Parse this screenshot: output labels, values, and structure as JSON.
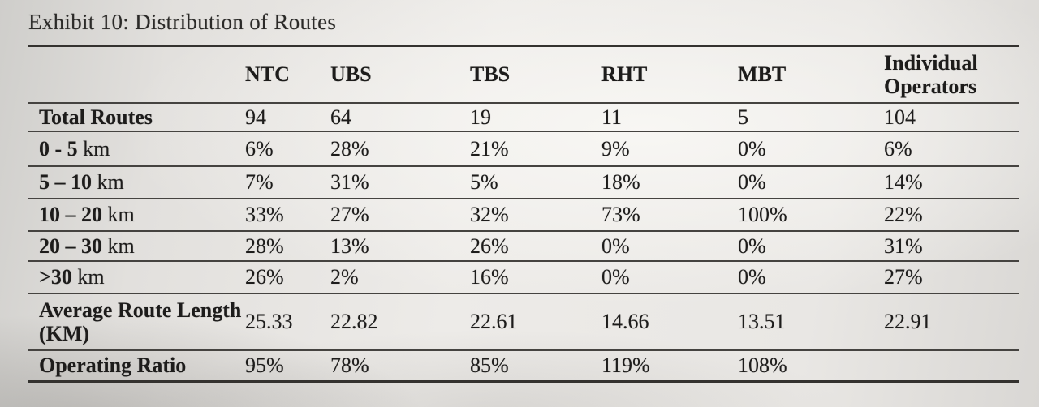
{
  "page": {
    "title": "Exhibit 10: Distribution of Routes"
  },
  "theme": {
    "ink_color": "#1d1c1b",
    "paper_color": "#eceae7",
    "rule_color": "#454340"
  },
  "table": {
    "columns": [
      "NTC",
      "UBS",
      "TBS",
      "RHT",
      "MBT",
      "Individual Operators"
    ],
    "rows": [
      {
        "label_bold": "Total Routes",
        "label_rest": "",
        "values": [
          "94",
          "64",
          "19",
          "11",
          "5",
          "104"
        ]
      },
      {
        "label_bold": "0 - 5",
        "label_rest": " km",
        "values": [
          "6%",
          "28%",
          "21%",
          "9%",
          "0%",
          "6%"
        ]
      },
      {
        "label_bold": "5 – 10",
        "label_rest": " km",
        "values": [
          "7%",
          "31%",
          "5%",
          "18%",
          "0%",
          "14%"
        ]
      },
      {
        "label_bold": "10 – 20",
        "label_rest": " km",
        "values": [
          "33%",
          "27%",
          "32%",
          "73%",
          "100%",
          "22%"
        ]
      },
      {
        "label_bold": "20 – 30",
        "label_rest": " km",
        "values": [
          "28%",
          "13%",
          "26%",
          "0%",
          "0%",
          "31%"
        ]
      },
      {
        "label_bold": ">30",
        "label_rest": " km",
        "values": [
          "26%",
          "2%",
          "16%",
          "0%",
          "0%",
          "27%"
        ]
      },
      {
        "label_bold": "Average Route Length (KM)",
        "label_rest": "",
        "values": [
          "25.33",
          "22.82",
          "22.61",
          "14.66",
          "13.51",
          "22.91"
        ]
      },
      {
        "label_bold": "Operating Ratio",
        "label_rest": "",
        "values": [
          "95%",
          "78%",
          "85%",
          "119%",
          "108%",
          ""
        ]
      }
    ]
  }
}
